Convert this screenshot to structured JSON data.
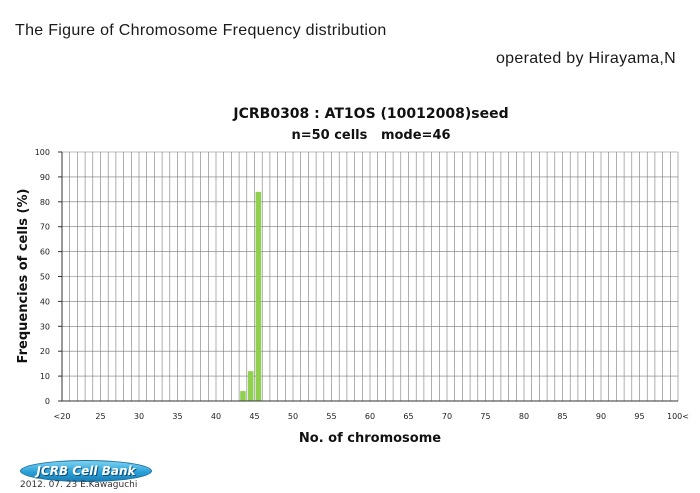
{
  "header": {
    "title": "The Figure of Chromosome Frequency distribution",
    "operator": "operated by Hirayama,N"
  },
  "footer": {
    "logo_text": "JCRB Cell Bank",
    "credit": "2012. 07. 23  E.Kawaguchi"
  },
  "colors": {
    "bar": "#8fd14f",
    "grid": "#7a7a7a",
    "axis": "#333333"
  },
  "chart_data": {
    "type": "bar",
    "title": "JCRB0308 : AT1OS (10012008)seed",
    "subtitle": "n=50 cells   mode=46",
    "xlabel": "No. of chromosome",
    "ylabel": "Frequencies of cells (%)",
    "ylim": [
      0,
      100
    ],
    "yticks": [
      0,
      10,
      20,
      30,
      40,
      50,
      60,
      70,
      80,
      90,
      100
    ],
    "xrange": [
      20,
      100
    ],
    "xtick_labels": [
      "<20",
      "25",
      "30",
      "35",
      "40",
      "45",
      "50",
      "55",
      "60",
      "65",
      "70",
      "75",
      "80",
      "85",
      "90",
      "95",
      "100<"
    ],
    "grid": true,
    "legend": "none",
    "x": [
      44,
      45,
      46
    ],
    "values": [
      4,
      12,
      84
    ]
  }
}
